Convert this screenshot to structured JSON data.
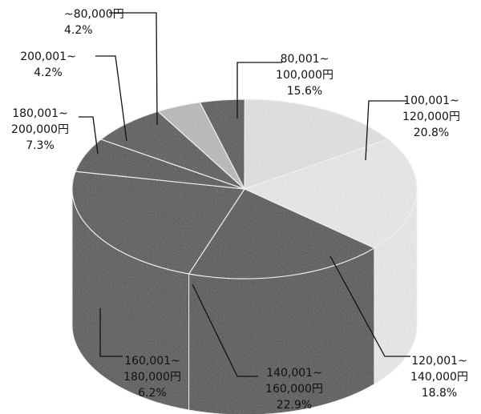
{
  "chart_data": {
    "type": "pie",
    "style": "3d-exploded",
    "slices": [
      {
        "label_line1": "~80,000円",
        "label_line2": "",
        "percent_text": "4.2%",
        "value": 4.2,
        "fill": "#141414"
      },
      {
        "label_line1": "80,001~",
        "label_line2": "100,000円",
        "percent_text": "15.6%",
        "value": 15.6,
        "fill": "#e8e8e8"
      },
      {
        "label_line1": "100,001~",
        "label_line2": "120,000円",
        "percent_text": "20.8%",
        "value": 20.8,
        "fill": "#f1f1f1"
      },
      {
        "label_line1": "120,001~",
        "label_line2": "140,000円",
        "percent_text": "18.8%",
        "value": 18.8,
        "fill": "#0d0d0d"
      },
      {
        "label_line1": "140,001~",
        "label_line2": "160,000円",
        "percent_text": "22.9%",
        "value": 22.9,
        "fill": "#181818"
      },
      {
        "label_line1": "160,001~",
        "label_line2": "180,000円",
        "percent_text": "6.2%",
        "value": 6.2,
        "fill": "#101010"
      },
      {
        "label_line1": "180,001~",
        "label_line2": "200,000円",
        "percent_text": "7.3%",
        "value": 7.3,
        "fill": "#1c1c1c"
      },
      {
        "label_line1": "200,001~",
        "label_line2": "",
        "percent_text": "4.2%",
        "value": 4.2,
        "fill": "#b9b9b9"
      }
    ]
  }
}
